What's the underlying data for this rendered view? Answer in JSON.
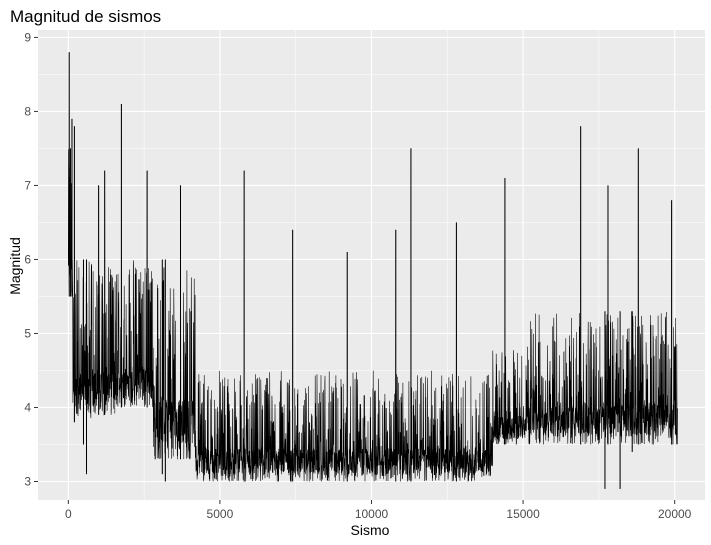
{
  "chart_data": {
    "type": "line",
    "title": "Magnitud de sismos",
    "xlabel": "Sismo",
    "ylabel": "Magnitud",
    "xlim": [
      -1000,
      21000
    ],
    "ylim": [
      2.75,
      9.1
    ],
    "x_ticks": [
      0,
      5000,
      10000,
      15000,
      20000
    ],
    "x_tick_labels": [
      "0",
      "5000",
      "10000",
      "15000",
      "20000"
    ],
    "y_ticks": [
      3,
      4,
      5,
      6,
      7,
      8,
      9
    ],
    "y_tick_labels": [
      "3",
      "4",
      "5",
      "6",
      "7",
      "8",
      "9"
    ],
    "grid": true,
    "colors": {
      "panel": "#ebebeb",
      "grid": "#ffffff",
      "line": "#000000",
      "tick": "#333333"
    },
    "n_points": 20100,
    "series": [
      {
        "segments": [
          {
            "x": [
              0,
              150
            ],
            "min": 5.5,
            "max": 7.5
          },
          {
            "x": [
              150,
              800
            ],
            "min": 3.8,
            "max": 6.0
          },
          {
            "x": [
              800,
              1700
            ],
            "min": 3.9,
            "max": 5.9
          },
          {
            "x": [
              1700,
              2800
            ],
            "min": 4.0,
            "max": 6.0
          },
          {
            "x": [
              2800,
              4200
            ],
            "min": 3.3,
            "max": 6.0
          },
          {
            "x": [
              4200,
              14000
            ],
            "min": 3.0,
            "max": 4.5
          },
          {
            "x": [
              14000,
              15000
            ],
            "min": 3.5,
            "max": 4.8
          },
          {
            "x": [
              15000,
              20100
            ],
            "min": 3.5,
            "max": 5.3
          }
        ],
        "peaks": [
          {
            "x": 30,
            "y": 8.8
          },
          {
            "x": 70,
            "y": 7.5
          },
          {
            "x": 120,
            "y": 7.9
          },
          {
            "x": 200,
            "y": 7.8
          },
          {
            "x": 1000,
            "y": 7.0
          },
          {
            "x": 1200,
            "y": 7.2
          },
          {
            "x": 1750,
            "y": 8.1
          },
          {
            "x": 2600,
            "y": 7.2
          },
          {
            "x": 3700,
            "y": 7.0
          },
          {
            "x": 5800,
            "y": 7.2
          },
          {
            "x": 7400,
            "y": 6.4
          },
          {
            "x": 9200,
            "y": 6.1
          },
          {
            "x": 10800,
            "y": 6.4
          },
          {
            "x": 11300,
            "y": 7.5
          },
          {
            "x": 12800,
            "y": 6.5
          },
          {
            "x": 14400,
            "y": 7.1
          },
          {
            "x": 16900,
            "y": 7.8
          },
          {
            "x": 17800,
            "y": 7.0
          },
          {
            "x": 18800,
            "y": 7.5
          },
          {
            "x": 19900,
            "y": 6.8
          }
        ],
        "dips": [
          {
            "x": 500,
            "y": 3.5
          },
          {
            "x": 600,
            "y": 3.1
          },
          {
            "x": 3100,
            "y": 3.1
          },
          {
            "x": 3200,
            "y": 3.0
          },
          {
            "x": 17700,
            "y": 2.9
          },
          {
            "x": 18200,
            "y": 2.9
          },
          {
            "x": 18600,
            "y": 3.4
          }
        ]
      }
    ]
  }
}
